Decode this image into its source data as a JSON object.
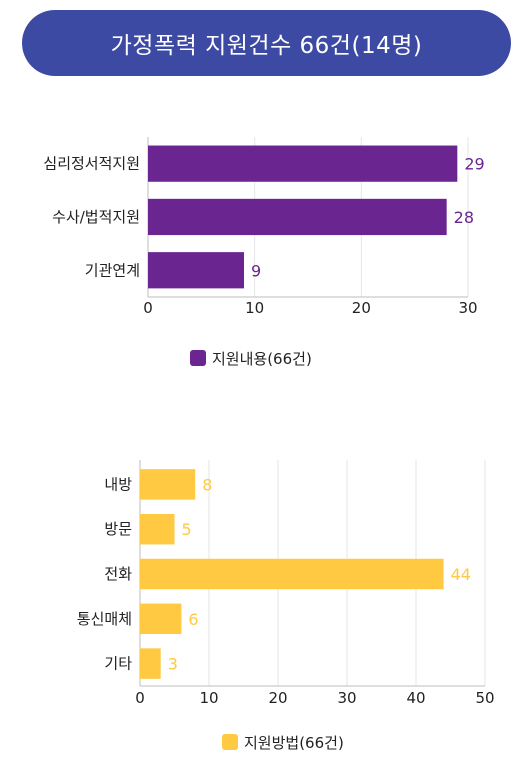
{
  "header": {
    "title": "가정폭력 지원건수 66건(14명)"
  },
  "chart_data": [
    {
      "type": "bar",
      "orientation": "horizontal",
      "categories": [
        "심리정서적지원",
        "수사/법적지원",
        "기관연계"
      ],
      "values": [
        29,
        28,
        9
      ],
      "xlim": [
        0,
        30
      ],
      "xticks": [
        0,
        10,
        20,
        30
      ],
      "series": [
        {
          "name": "지원내용(66건)",
          "values": [
            29,
            28,
            9
          ]
        }
      ],
      "color": "#6a2591",
      "legend": "bottom-center",
      "grid": true
    },
    {
      "type": "bar",
      "orientation": "horizontal",
      "categories": [
        "내방",
        "방문",
        "전화",
        "통신매체",
        "기타"
      ],
      "values": [
        8,
        5,
        44,
        6,
        3
      ],
      "xlim": [
        0,
        50
      ],
      "xticks": [
        0,
        10,
        20,
        30,
        40,
        50
      ],
      "series": [
        {
          "name": "지원방법(66건)",
          "values": [
            8,
            5,
            44,
            6,
            3
          ]
        }
      ],
      "color": "#ffc941",
      "legend": "bottom-center",
      "grid": true
    }
  ]
}
